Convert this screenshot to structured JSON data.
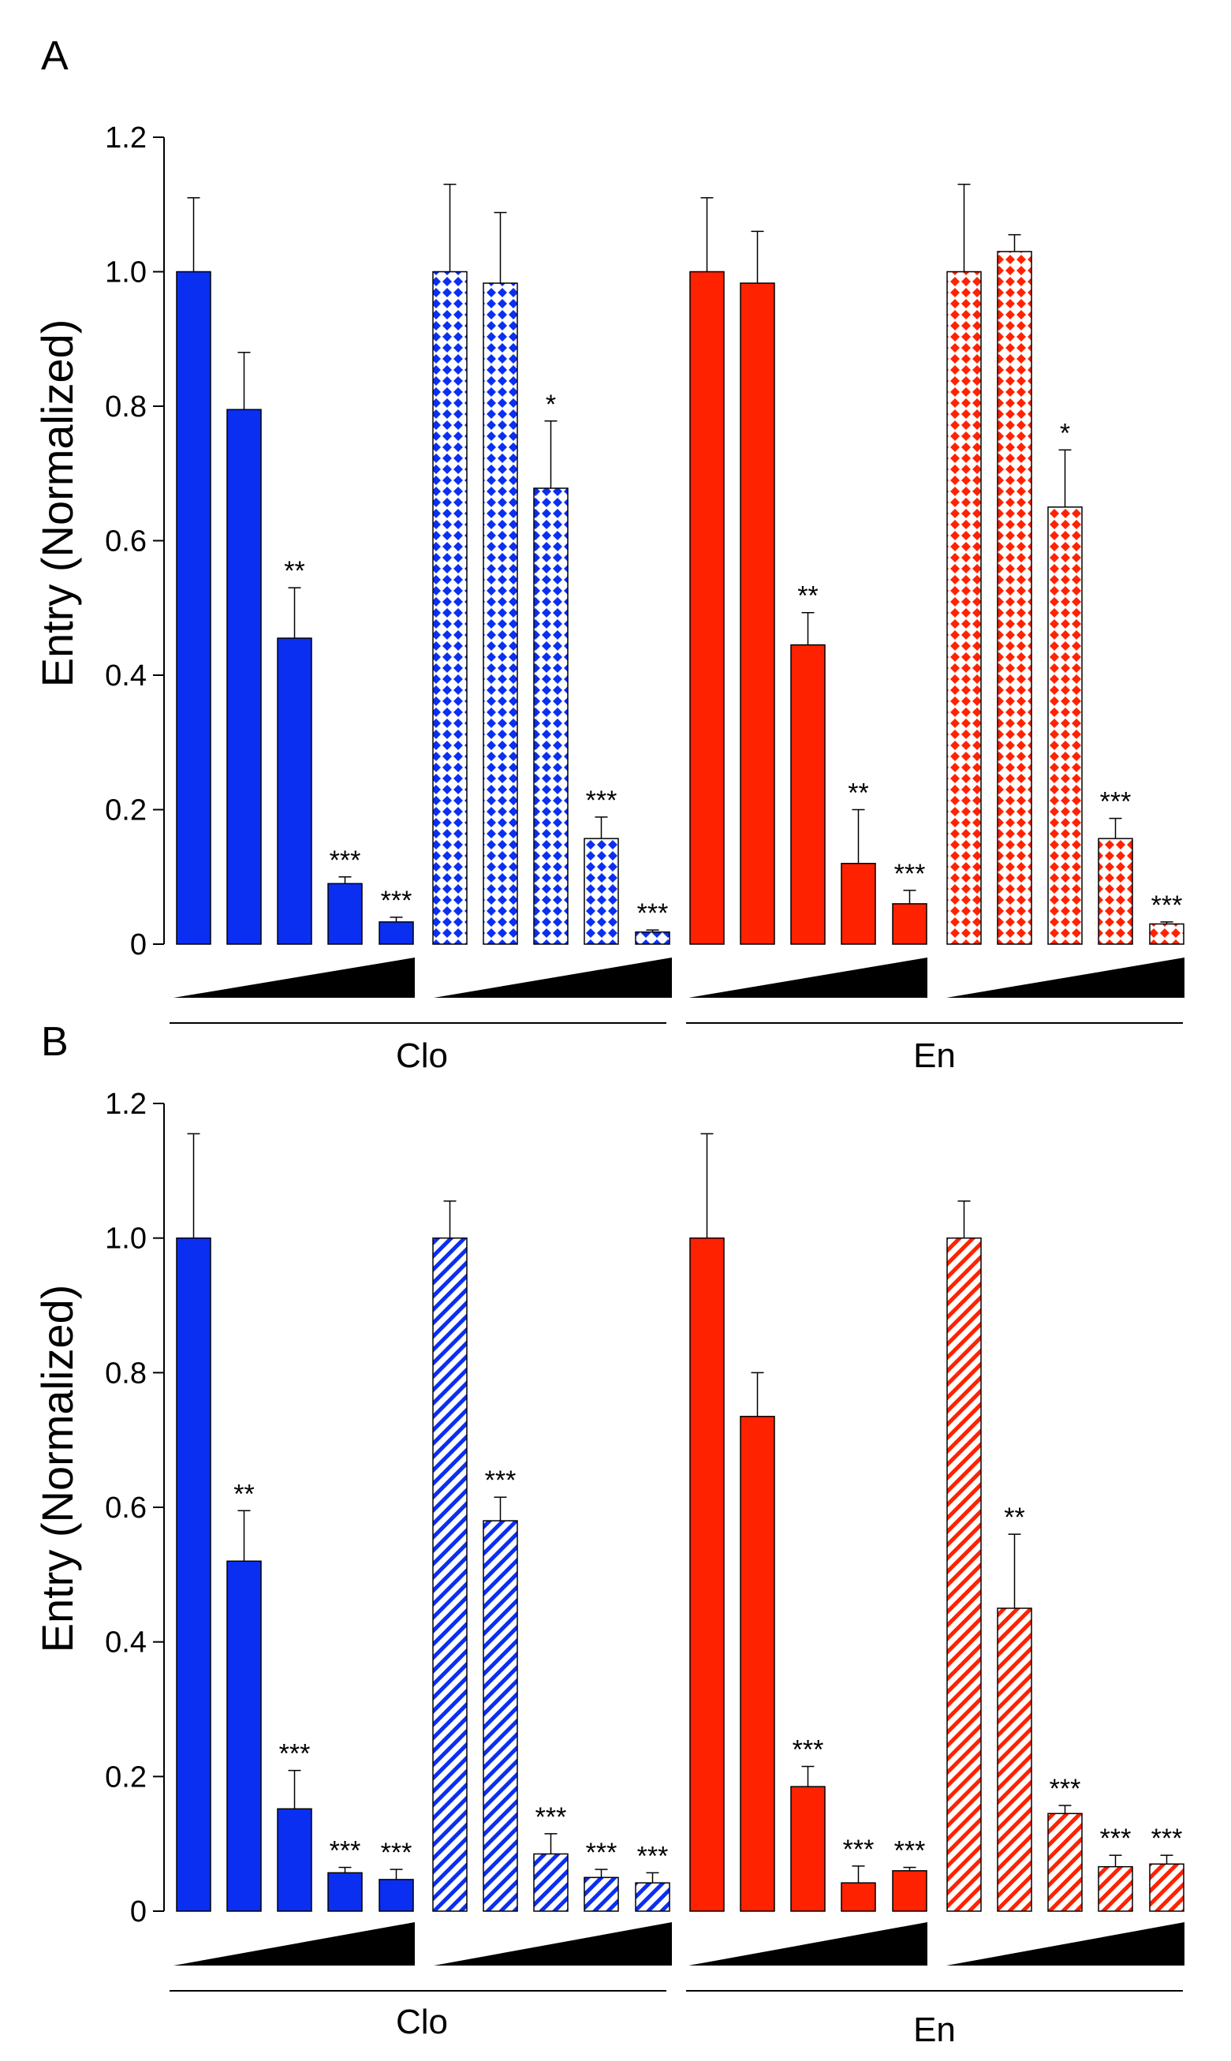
{
  "colors": {
    "blue": "#0b2ff0",
    "red": "#ff2200",
    "axis": "#000000",
    "background": "#ffffff"
  },
  "chart_data": [
    {
      "panel_label": "A",
      "type": "bar",
      "ylabel": "Entry (Normalized)",
      "ylim": [
        0,
        1.2
      ],
      "yticks": [
        "0",
        "0.2",
        "0.4",
        "0.6",
        "0.8",
        "1.0",
        "1.2"
      ],
      "groups": [
        {
          "name": "Clo",
          "label": "Clo",
          "series": [
            {
              "color": "blue",
              "pattern": "solid",
              "values": [
                1.0,
                0.795,
                0.455,
                0.09,
                0.033
              ],
              "errors": [
                0.11,
                0.085,
                0.075,
                0.01,
                0.007
              ],
              "sig": [
                "",
                "",
                "**",
                "***",
                "***"
              ]
            },
            {
              "color": "blue",
              "pattern": "diamond",
              "values": [
                1.0,
                0.983,
                0.678,
                0.157,
                0.018
              ],
              "errors": [
                0.13,
                0.105,
                0.1,
                0.032,
                0.003
              ],
              "sig": [
                "",
                "",
                "*",
                "***",
                "***"
              ]
            }
          ]
        },
        {
          "name": "En",
          "label": "En",
          "series": [
            {
              "color": "red",
              "pattern": "solid",
              "values": [
                1.0,
                0.983,
                0.445,
                0.12,
                0.06
              ],
              "errors": [
                0.11,
                0.077,
                0.048,
                0.08,
                0.02
              ],
              "sig": [
                "",
                "",
                "**",
                "**",
                "***"
              ]
            },
            {
              "color": "red",
              "pattern": "diamond",
              "values": [
                1.0,
                1.03,
                0.65,
                0.157,
                0.03
              ],
              "errors": [
                0.13,
                0.025,
                0.085,
                0.03,
                0.003
              ],
              "sig": [
                "",
                "",
                "*",
                "***",
                "***"
              ]
            }
          ]
        }
      ]
    },
    {
      "panel_label": "B",
      "type": "bar",
      "ylabel": "Entry (Normalized)",
      "ylim": [
        0,
        1.2
      ],
      "yticks": [
        "0",
        "0.2",
        "0.4",
        "0.6",
        "0.8",
        "1.0",
        "1.2"
      ],
      "groups": [
        {
          "name": "Clo",
          "label": "Clo",
          "series": [
            {
              "color": "blue",
              "pattern": "solid",
              "values": [
                1.0,
                0.52,
                0.152,
                0.057,
                0.047
              ],
              "errors": [
                0.155,
                0.075,
                0.057,
                0.008,
                0.015
              ],
              "sig": [
                "",
                "**",
                "***",
                "***",
                "***"
              ]
            },
            {
              "color": "blue",
              "pattern": "hatch",
              "values": [
                1.0,
                0.58,
                0.085,
                0.05,
                0.042
              ],
              "errors": [
                0.055,
                0.035,
                0.03,
                0.012,
                0.015
              ],
              "sig": [
                "",
                "***",
                "***",
                "***",
                "***"
              ]
            }
          ]
        },
        {
          "name": "En",
          "label": "En",
          "series": [
            {
              "color": "red",
              "pattern": "solid",
              "values": [
                1.0,
                0.735,
                0.185,
                0.042,
                0.06
              ],
              "errors": [
                0.155,
                0.065,
                0.03,
                0.025,
                0.005
              ],
              "sig": [
                "",
                "",
                "***",
                "***",
                "***"
              ]
            },
            {
              "color": "red",
              "pattern": "hatch",
              "values": [
                1.0,
                0.45,
                0.145,
                0.066,
                0.07
              ],
              "errors": [
                0.055,
                0.11,
                0.012,
                0.017,
                0.013
              ],
              "sig": [
                "",
                "**",
                "***",
                "***",
                "***"
              ]
            }
          ]
        }
      ]
    }
  ]
}
